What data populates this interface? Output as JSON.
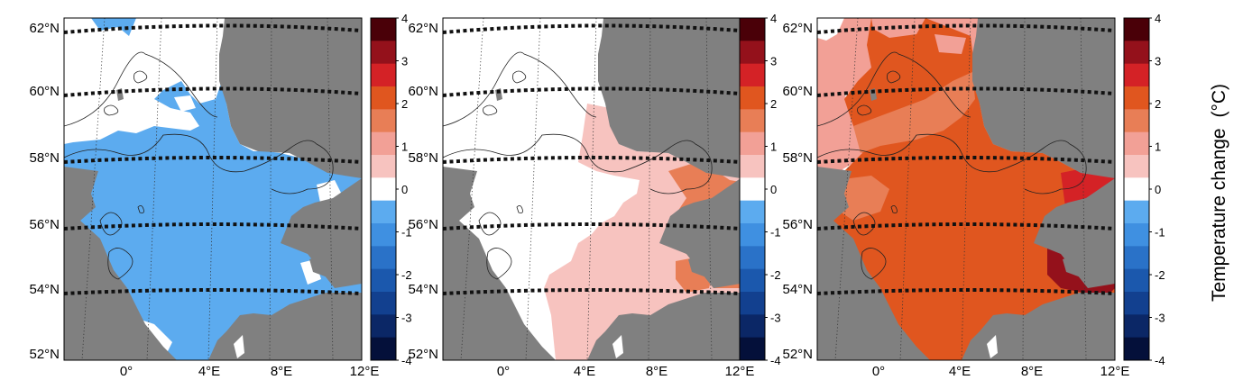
{
  "figure": {
    "colorbar": {
      "title": "Temperature change",
      "title_unit": "(°C)",
      "tick_labels": [
        "4",
        "3",
        "2",
        "1",
        "0",
        "-1",
        "-2",
        "-3",
        "-4"
      ],
      "colors": [
        "#4a0008",
        "#94111b",
        "#d42226",
        "#e0561f",
        "#e87e56",
        "#f2a096",
        "#f7c3bf",
        "#ffffff",
        "#5cabef",
        "#3f90e1",
        "#2a72c8",
        "#1b58ad",
        "#12408f",
        "#0b2766",
        "#04103a"
      ]
    },
    "lat_labels": [
      "62°N",
      "60°N",
      "58°N",
      "56°N",
      "54°N",
      "52°N"
    ],
    "lon_labels": [
      "0°",
      "4°E",
      "8°E",
      "12°E"
    ],
    "panels": [
      {
        "fill_color": "#5cabef",
        "fill_meaning": "-0.5 to -1"
      },
      {
        "fill_color": "#f7c3bf",
        "fill_meaning": "0.5 to 1",
        "secondary_color": "#e87e56"
      },
      {
        "fill_color": "#e0561f",
        "fill_meaning": "1.5 to 2",
        "secondary_color": "#d42226",
        "tertiary_color": "#94111b",
        "background_color": "#f2a096"
      }
    ],
    "land_color": "#808080",
    "grid_style": "dotted"
  }
}
